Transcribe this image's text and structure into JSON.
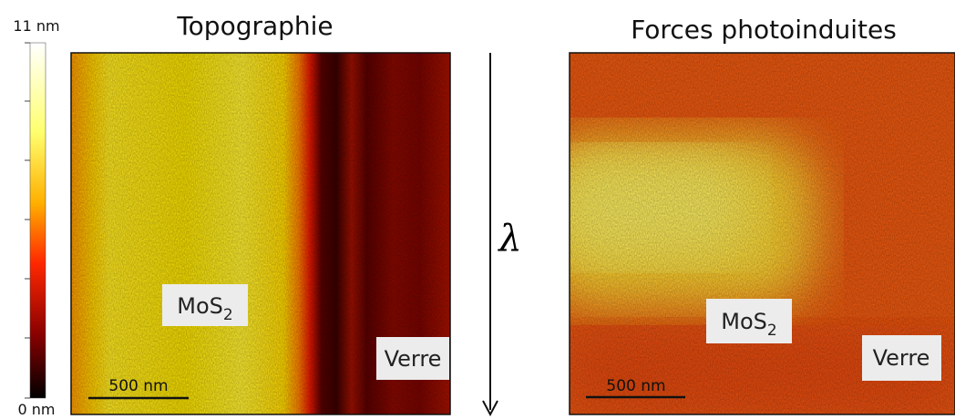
{
  "colorbar": {
    "max_label": "11 nm",
    "min_label": "0 nm"
  },
  "arrow_label": "λ",
  "panels": [
    {
      "title": "Topographie",
      "material_label": {
        "text": "MoS",
        "subscript": "2"
      },
      "substrate_label": "Verre",
      "scale_bar": "500 nm"
    },
    {
      "title": "Forces photoinduites",
      "material_label": {
        "text": "MoS",
        "subscript": "2"
      },
      "substrate_label": "Verre",
      "scale_bar": "500 nm"
    }
  ]
}
